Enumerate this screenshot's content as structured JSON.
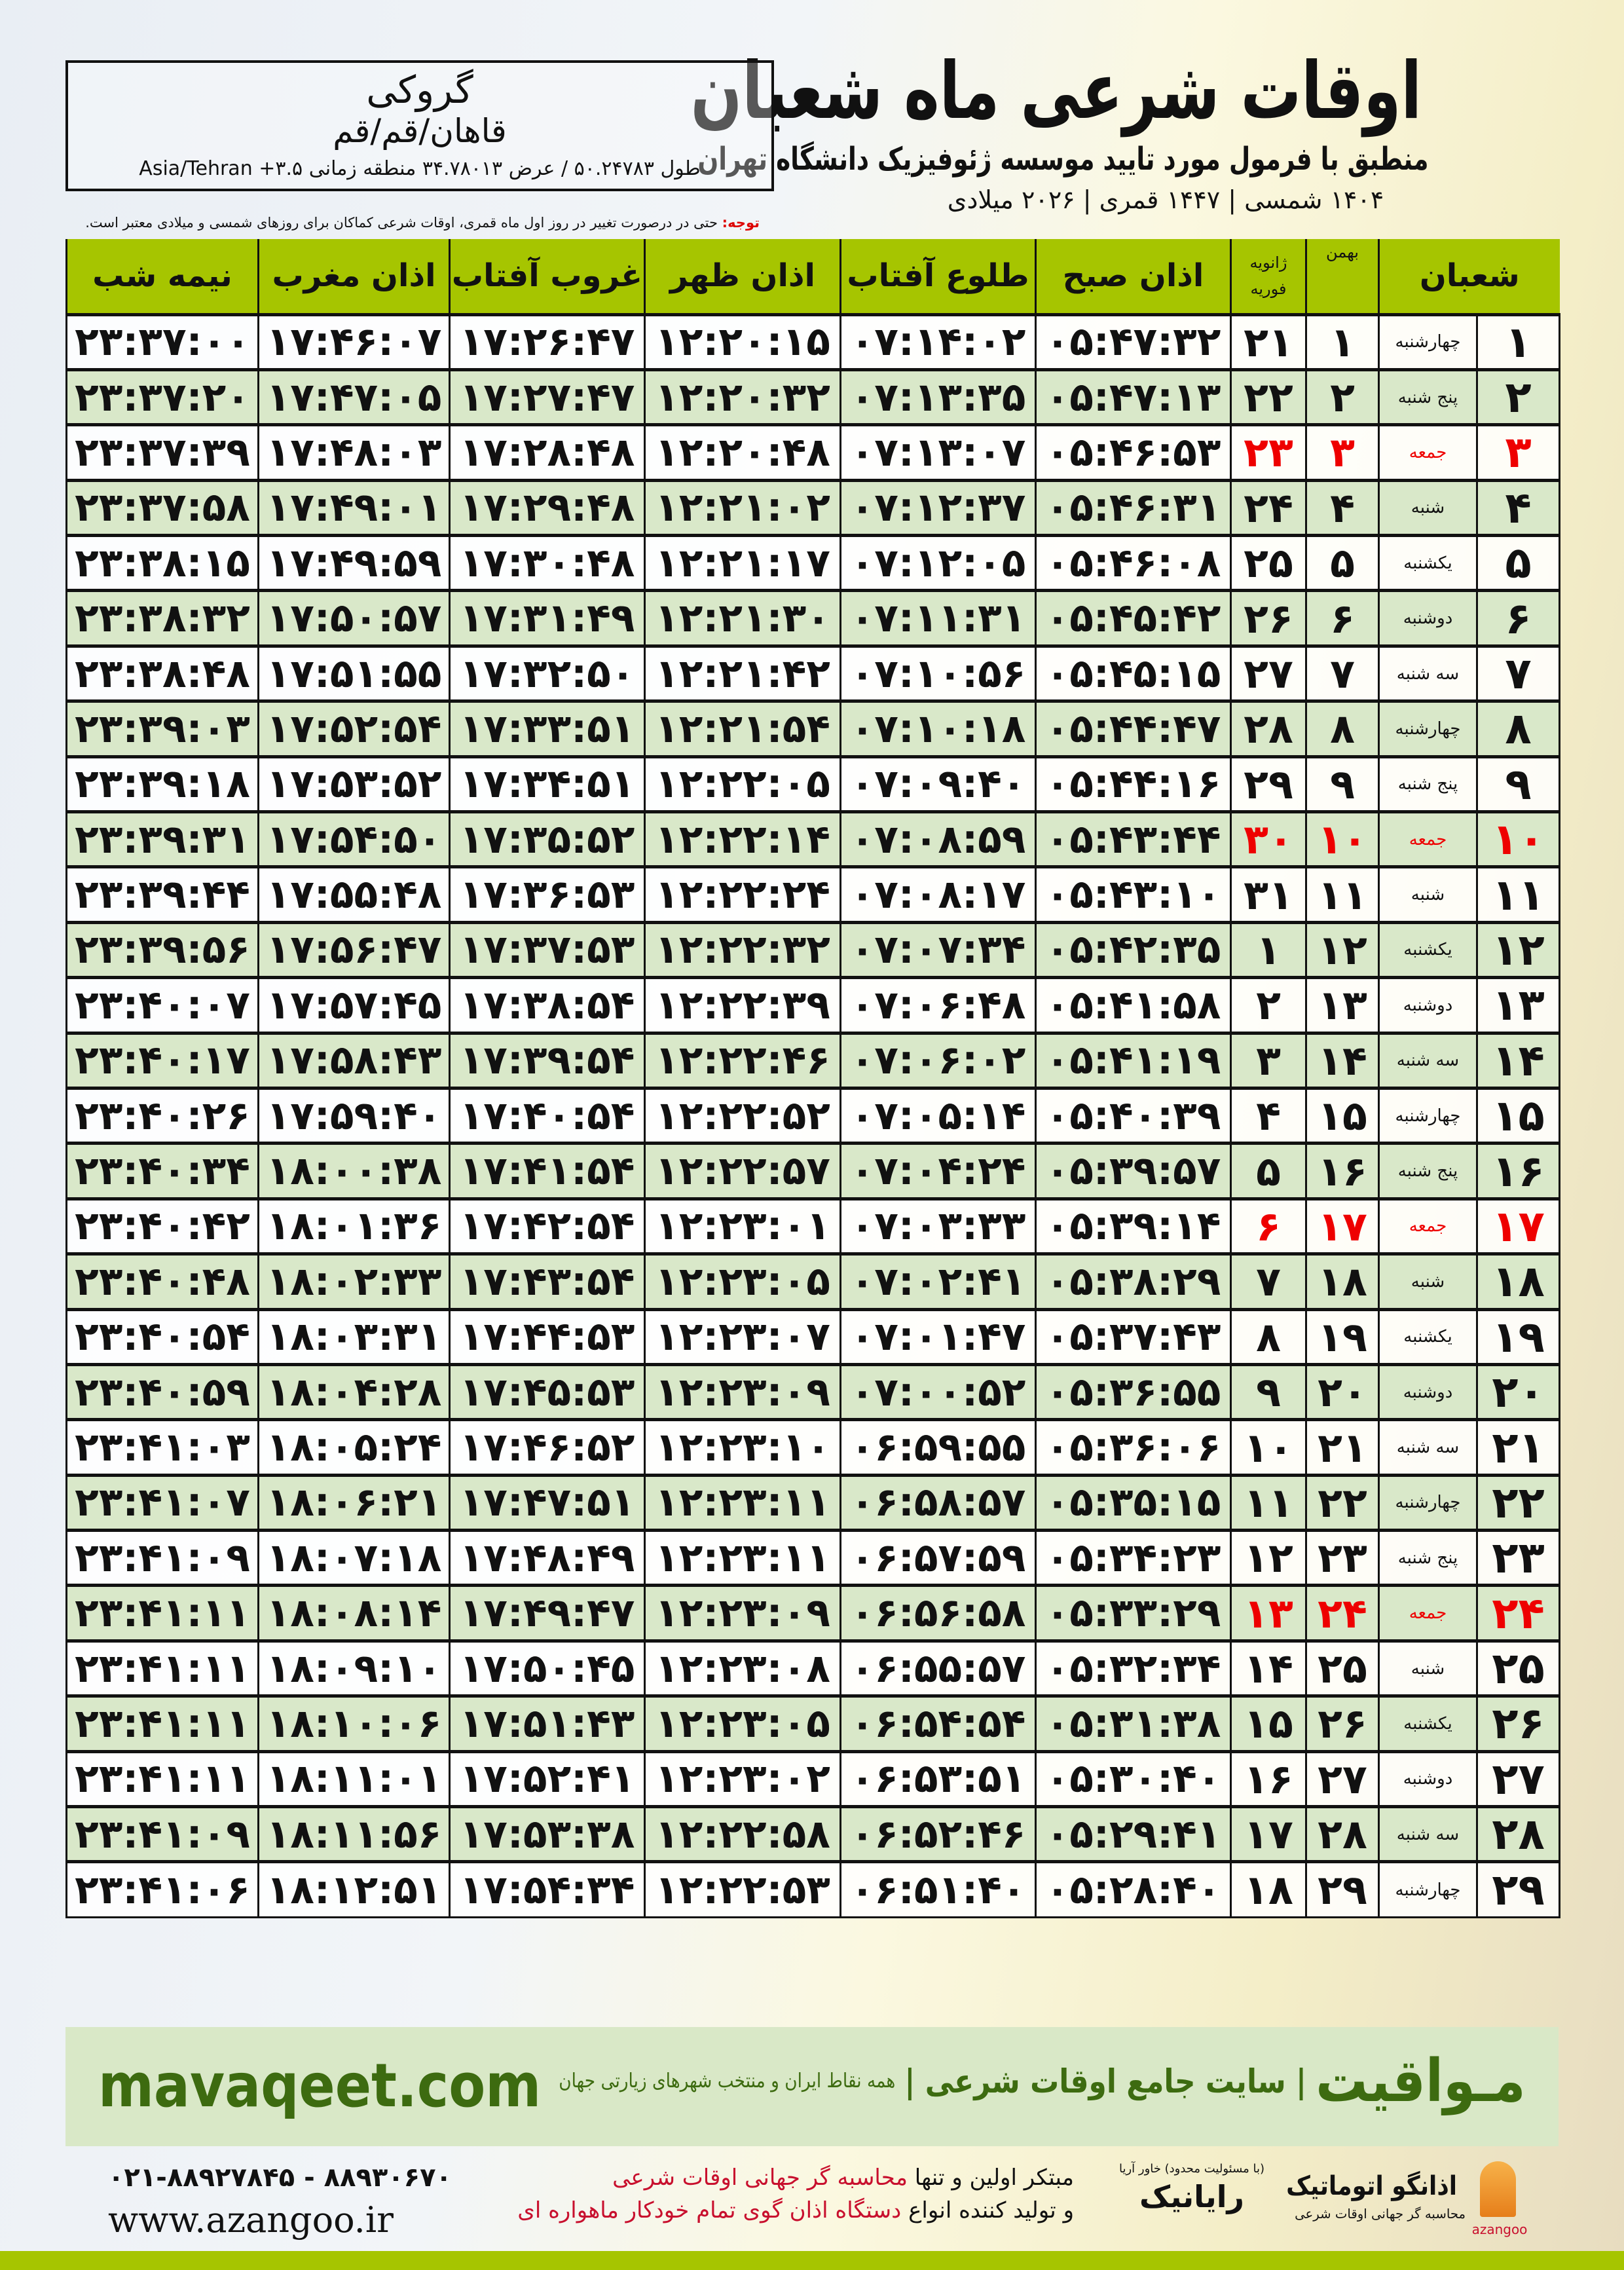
{
  "header": {
    "title": "اوقات شرعی ماه شعبان",
    "subtitle": "منطبق با فرمول مورد تایید موسسه ژئوفیزیک دانشگاه تهران",
    "dates": "۱۴۰۴ شمسی | ۱۴۴۷ قمری | ۲۰۲۶ میلادی"
  },
  "location": {
    "city": "گروکی",
    "region": "قاهان/قم/قم",
    "coords": "طول ۵۰.۲۴۷۸۳ / عرض ۳۴.۷۸۰۱۳ منطقه زمانی ۳.۵+ Asia/Tehran"
  },
  "note": {
    "label": "توجه:",
    "text": " حتی در درصورت تغییر در روز اول ماه قمری، اوقات شرعی کماکان برای روزهای شمسی و میلادی معتبر است."
  },
  "colors": {
    "header_green": "#a6c500",
    "row_alt": "#d9e8c9",
    "friday_red": "#e00000",
    "brand_green": "#3d6b10"
  },
  "table": {
    "headers": {
      "shaban": "شعبان",
      "bahman": "بهمن",
      "gregorian_1": "ژانویه",
      "gregorian_2": "فوریه",
      "fajr": "اذان صبح",
      "sunrise": "طلوع آفتاب",
      "dhuhr": "اذان ظهر",
      "sunset": "غروب آفتاب",
      "maghrib": "اذان مغرب",
      "midnight": "نیمه شب"
    },
    "rows": [
      [
        "۱",
        "چهارشنبه",
        "۱",
        "۲۱",
        "۰۵:۴۷:۳۲",
        "۰۷:۱۴:۰۲",
        "۱۲:۲۰:۱۵",
        "۱۷:۲۶:۴۷",
        "۱۷:۴۶:۰۷",
        "۲۳:۳۷:۰۰"
      ],
      [
        "۲",
        "پنج شنبه",
        "۲",
        "۲۲",
        "۰۵:۴۷:۱۳",
        "۰۷:۱۳:۳۵",
        "۱۲:۲۰:۳۲",
        "۱۷:۲۷:۴۷",
        "۱۷:۴۷:۰۵",
        "۲۳:۳۷:۲۰"
      ],
      [
        "۳",
        "جمعه",
        "۳",
        "۲۳",
        "۰۵:۴۶:۵۳",
        "۰۷:۱۳:۰۷",
        "۱۲:۲۰:۴۸",
        "۱۷:۲۸:۴۸",
        "۱۷:۴۸:۰۳",
        "۲۳:۳۷:۳۹"
      ],
      [
        "۴",
        "شنبه",
        "۴",
        "۲۴",
        "۰۵:۴۶:۳۱",
        "۰۷:۱۲:۳۷",
        "۱۲:۲۱:۰۲",
        "۱۷:۲۹:۴۸",
        "۱۷:۴۹:۰۱",
        "۲۳:۳۷:۵۸"
      ],
      [
        "۵",
        "یکشنبه",
        "۵",
        "۲۵",
        "۰۵:۴۶:۰۸",
        "۰۷:۱۲:۰۵",
        "۱۲:۲۱:۱۷",
        "۱۷:۳۰:۴۸",
        "۱۷:۴۹:۵۹",
        "۲۳:۳۸:۱۵"
      ],
      [
        "۶",
        "دوشنبه",
        "۶",
        "۲۶",
        "۰۵:۴۵:۴۲",
        "۰۷:۱۱:۳۱",
        "۱۲:۲۱:۳۰",
        "۱۷:۳۱:۴۹",
        "۱۷:۵۰:۵۷",
        "۲۳:۳۸:۳۲"
      ],
      [
        "۷",
        "سه شنبه",
        "۷",
        "۲۷",
        "۰۵:۴۵:۱۵",
        "۰۷:۱۰:۵۶",
        "۱۲:۲۱:۴۲",
        "۱۷:۳۲:۵۰",
        "۱۷:۵۱:۵۵",
        "۲۳:۳۸:۴۸"
      ],
      [
        "۸",
        "چهارشنبه",
        "۸",
        "۲۸",
        "۰۵:۴۴:۴۷",
        "۰۷:۱۰:۱۸",
        "۱۲:۲۱:۵۴",
        "۱۷:۳۳:۵۱",
        "۱۷:۵۲:۵۴",
        "۲۳:۳۹:۰۳"
      ],
      [
        "۹",
        "پنج شنبه",
        "۹",
        "۲۹",
        "۰۵:۴۴:۱۶",
        "۰۷:۰۹:۴۰",
        "۱۲:۲۲:۰۵",
        "۱۷:۳۴:۵۱",
        "۱۷:۵۳:۵۲",
        "۲۳:۳۹:۱۸"
      ],
      [
        "۱۰",
        "جمعه",
        "۱۰",
        "۳۰",
        "۰۵:۴۳:۴۴",
        "۰۷:۰۸:۵۹",
        "۱۲:۲۲:۱۴",
        "۱۷:۳۵:۵۲",
        "۱۷:۵۴:۵۰",
        "۲۳:۳۹:۳۱"
      ],
      [
        "۱۱",
        "شنبه",
        "۱۱",
        "۳۱",
        "۰۵:۴۳:۱۰",
        "۰۷:۰۸:۱۷",
        "۱۲:۲۲:۲۴",
        "۱۷:۳۶:۵۳",
        "۱۷:۵۵:۴۸",
        "۲۳:۳۹:۴۴"
      ],
      [
        "۱۲",
        "یکشنبه",
        "۱۲",
        "۱",
        "۰۵:۴۲:۳۵",
        "۰۷:۰۷:۳۴",
        "۱۲:۲۲:۳۲",
        "۱۷:۳۷:۵۳",
        "۱۷:۵۶:۴۷",
        "۲۳:۳۹:۵۶"
      ],
      [
        "۱۳",
        "دوشنبه",
        "۱۳",
        "۲",
        "۰۵:۴۱:۵۸",
        "۰۷:۰۶:۴۸",
        "۱۲:۲۲:۳۹",
        "۱۷:۳۸:۵۴",
        "۱۷:۵۷:۴۵",
        "۲۳:۴۰:۰۷"
      ],
      [
        "۱۴",
        "سه شنبه",
        "۱۴",
        "۳",
        "۰۵:۴۱:۱۹",
        "۰۷:۰۶:۰۲",
        "۱۲:۲۲:۴۶",
        "۱۷:۳۹:۵۴",
        "۱۷:۵۸:۴۳",
        "۲۳:۴۰:۱۷"
      ],
      [
        "۱۵",
        "چهارشنبه",
        "۱۵",
        "۴",
        "۰۵:۴۰:۳۹",
        "۰۷:۰۵:۱۴",
        "۱۲:۲۲:۵۲",
        "۱۷:۴۰:۵۴",
        "۱۷:۵۹:۴۰",
        "۲۳:۴۰:۲۶"
      ],
      [
        "۱۶",
        "پنج شنبه",
        "۱۶",
        "۵",
        "۰۵:۳۹:۵۷",
        "۰۷:۰۴:۲۴",
        "۱۲:۲۲:۵۷",
        "۱۷:۴۱:۵۴",
        "۱۸:۰۰:۳۸",
        "۲۳:۴۰:۳۴"
      ],
      [
        "۱۷",
        "جمعه",
        "۱۷",
        "۶",
        "۰۵:۳۹:۱۴",
        "۰۷:۰۳:۳۳",
        "۱۲:۲۳:۰۱",
        "۱۷:۴۲:۵۴",
        "۱۸:۰۱:۳۶",
        "۲۳:۴۰:۴۲"
      ],
      [
        "۱۸",
        "شنبه",
        "۱۸",
        "۷",
        "۰۵:۳۸:۲۹",
        "۰۷:۰۲:۴۱",
        "۱۲:۲۳:۰۵",
        "۱۷:۴۳:۵۴",
        "۱۸:۰۲:۳۳",
        "۲۳:۴۰:۴۸"
      ],
      [
        "۱۹",
        "یکشنبه",
        "۱۹",
        "۸",
        "۰۵:۳۷:۴۳",
        "۰۷:۰۱:۴۷",
        "۱۲:۲۳:۰۷",
        "۱۷:۴۴:۵۳",
        "۱۸:۰۳:۳۱",
        "۲۳:۴۰:۵۴"
      ],
      [
        "۲۰",
        "دوشنبه",
        "۲۰",
        "۹",
        "۰۵:۳۶:۵۵",
        "۰۷:۰۰:۵۲",
        "۱۲:۲۳:۰۹",
        "۱۷:۴۵:۵۳",
        "۱۸:۰۴:۲۸",
        "۲۳:۴۰:۵۹"
      ],
      [
        "۲۱",
        "سه شنبه",
        "۲۱",
        "۱۰",
        "۰۵:۳۶:۰۶",
        "۰۶:۵۹:۵۵",
        "۱۲:۲۳:۱۰",
        "۱۷:۴۶:۵۲",
        "۱۸:۰۵:۲۴",
        "۲۳:۴۱:۰۳"
      ],
      [
        "۲۲",
        "چهارشنبه",
        "۲۲",
        "۱۱",
        "۰۵:۳۵:۱۵",
        "۰۶:۵۸:۵۷",
        "۱۲:۲۳:۱۱",
        "۱۷:۴۷:۵۱",
        "۱۸:۰۶:۲۱",
        "۲۳:۴۱:۰۷"
      ],
      [
        "۲۳",
        "پنج شنبه",
        "۲۳",
        "۱۲",
        "۰۵:۳۴:۲۳",
        "۰۶:۵۷:۵۹",
        "۱۲:۲۳:۱۱",
        "۱۷:۴۸:۴۹",
        "۱۸:۰۷:۱۸",
        "۲۳:۴۱:۰۹"
      ],
      [
        "۲۴",
        "جمعه",
        "۲۴",
        "۱۳",
        "۰۵:۳۳:۲۹",
        "۰۶:۵۶:۵۸",
        "۱۲:۲۳:۰۹",
        "۱۷:۴۹:۴۷",
        "۱۸:۰۸:۱۴",
        "۲۳:۴۱:۱۱"
      ],
      [
        "۲۵",
        "شنبه",
        "۲۵",
        "۱۴",
        "۰۵:۳۲:۳۴",
        "۰۶:۵۵:۵۷",
        "۱۲:۲۳:۰۸",
        "۱۷:۵۰:۴۵",
        "۱۸:۰۹:۱۰",
        "۲۳:۴۱:۱۱"
      ],
      [
        "۲۶",
        "یکشنبه",
        "۲۶",
        "۱۵",
        "۰۵:۳۱:۳۸",
        "۰۶:۵۴:۵۴",
        "۱۲:۲۳:۰۵",
        "۱۷:۵۱:۴۳",
        "۱۸:۱۰:۰۶",
        "۲۳:۴۱:۱۱"
      ],
      [
        "۲۷",
        "دوشنبه",
        "۲۷",
        "۱۶",
        "۰۵:۳۰:۴۰",
        "۰۶:۵۳:۵۱",
        "۱۲:۲۳:۰۲",
        "۱۷:۵۲:۴۱",
        "۱۸:۱۱:۰۱",
        "۲۳:۴۱:۱۱"
      ],
      [
        "۲۸",
        "سه شنبه",
        "۲۸",
        "۱۷",
        "۰۵:۲۹:۴۱",
        "۰۶:۵۲:۴۶",
        "۱۲:۲۲:۵۸",
        "۱۷:۵۳:۳۸",
        "۱۸:۱۱:۵۶",
        "۲۳:۴۱:۰۹"
      ],
      [
        "۲۹",
        "چهارشنبه",
        "۲۹",
        "۱۸",
        "۰۵:۲۸:۴۰",
        "۰۶:۵۱:۴۰",
        "۱۲:۲۲:۵۳",
        "۱۷:۵۴:۳۴",
        "۱۸:۱۲:۵۱",
        "۲۳:۴۱:۰۶"
      ]
    ],
    "friday_label": "جمعه"
  },
  "footer": {
    "brand": "مـواقیت",
    "brand_tagline": "| سایت جامع اوقات شرعی |",
    "brand_sub": "همه نقاط ایران و منتخب شهرهای زیارتی جهان",
    "site": "mavaqeet.com",
    "ad_line1_a": "مبتکر اولین و تنها ",
    "ad_line1_b": "محاسبه گر جهانی اوقات شرعی",
    "ad_line2_a": "و تولید کننده انواع ",
    "ad_line2_b": "دستگاه اذان گوی تمام خودکار ماهواره ای",
    "phone": "۰۲۱-۸۸۹۲۷۸۴۵ - ۸۸۹۳۰۶۷۰",
    "web": "www.azangoo.ir",
    "logo_rayanik": "رایانیک",
    "logo_rayanik_small": "(با مسئولیت محدود) خاور آریا",
    "logo_azangoo": "اذانگو اتوماتیک",
    "logo_azangoo_sub": "محاسبه گر جهانی اوقات شرعی",
    "logo_azangoo_en": "azangoo"
  }
}
